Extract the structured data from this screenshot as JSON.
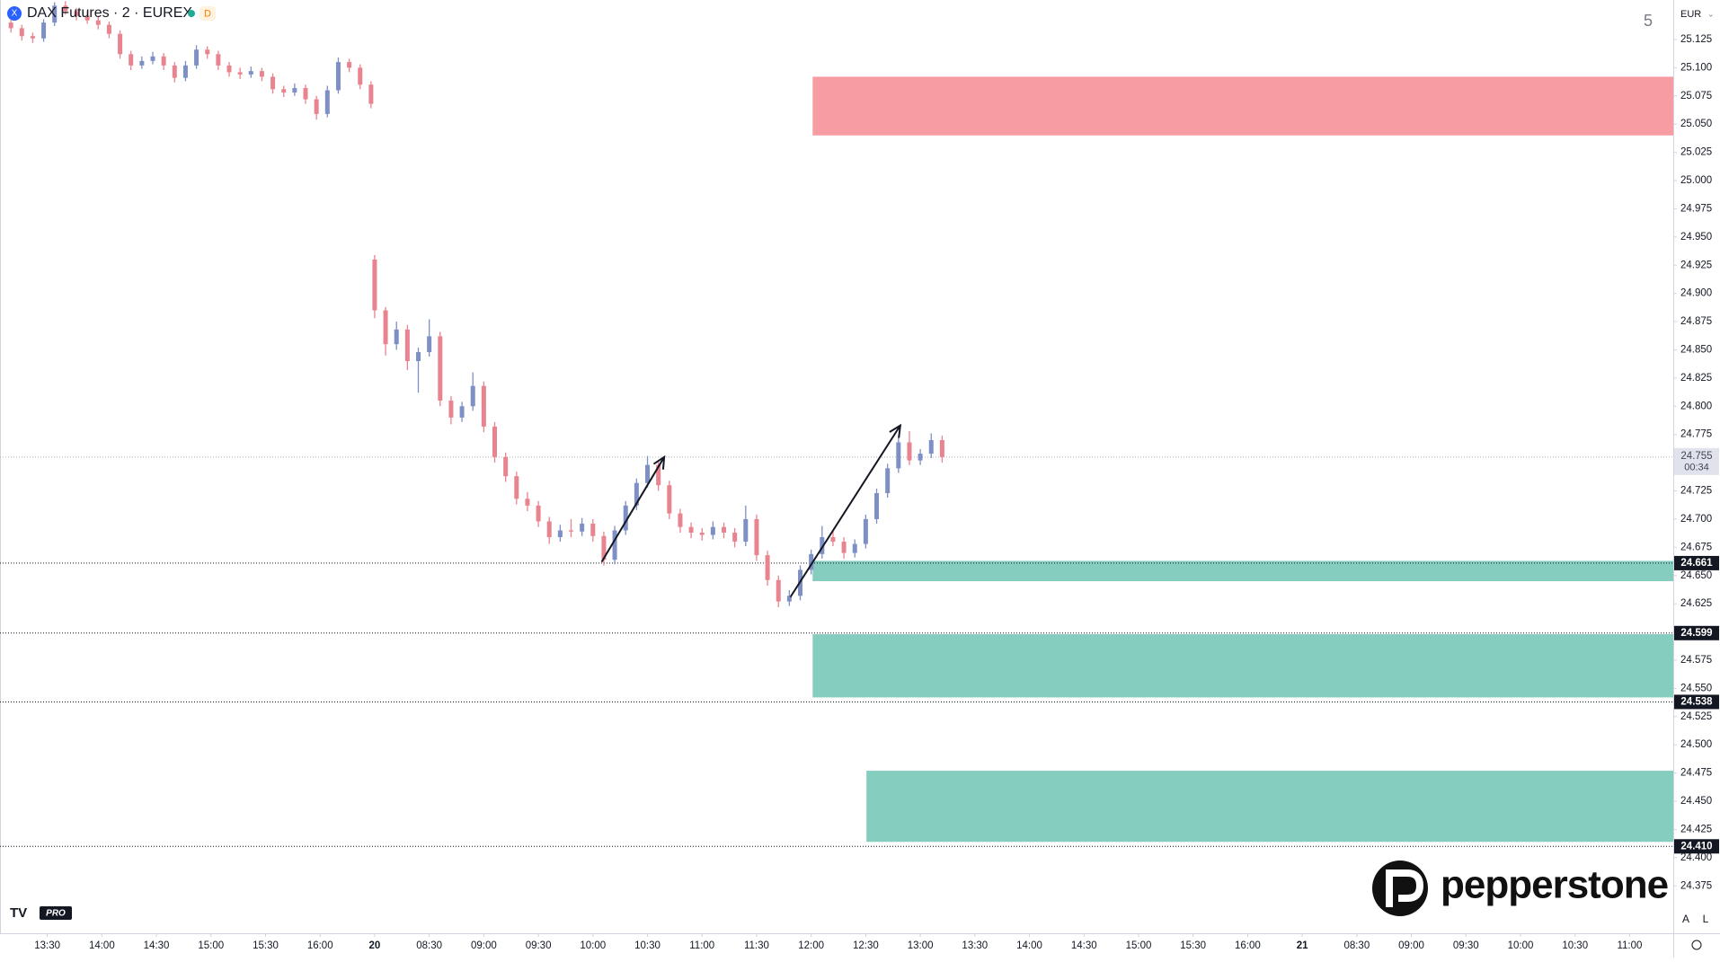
{
  "chart_data": {
    "type": "candlestick",
    "title": "DAX Futures · 2 · EUREX",
    "badge": "D",
    "corner_label": "5",
    "currency": "EUR",
    "axis_buttons": [
      "A",
      "L"
    ],
    "brand": "pepperstone",
    "tv_badge": "PRO",
    "up_color": "#7d8fc4",
    "down_color": "#e8848f",
    "xlim": [
      -13,
      447
    ],
    "ylim": [
      24333,
      25160
    ],
    "xticks": [
      {
        "value": 0,
        "label": "13:30"
      },
      {
        "value": 15,
        "label": "14:00"
      },
      {
        "value": 30,
        "label": "14:30"
      },
      {
        "value": 45,
        "label": "15:00"
      },
      {
        "value": 60,
        "label": "15:30"
      },
      {
        "value": 75,
        "label": "16:00"
      },
      {
        "value": 90,
        "label": "20"
      },
      {
        "value": 105,
        "label": "08:30"
      },
      {
        "value": 120,
        "label": "09:00"
      },
      {
        "value": 135,
        "label": "09:30"
      },
      {
        "value": 150,
        "label": "10:00"
      },
      {
        "value": 165,
        "label": "10:30"
      },
      {
        "value": 180,
        "label": "11:00"
      },
      {
        "value": 195,
        "label": "11:30"
      },
      {
        "value": 210,
        "label": "12:00"
      },
      {
        "value": 225,
        "label": "12:30"
      },
      {
        "value": 240,
        "label": "13:00"
      },
      {
        "value": 255,
        "label": "13:30"
      },
      {
        "value": 270,
        "label": "14:00"
      },
      {
        "value": 285,
        "label": "14:30"
      },
      {
        "value": 300,
        "label": "15:00"
      },
      {
        "value": 315,
        "label": "15:30"
      },
      {
        "value": 330,
        "label": "16:00"
      },
      {
        "value": 345,
        "label": "21"
      },
      {
        "value": 360,
        "label": "08:30"
      },
      {
        "value": 375,
        "label": "09:00"
      },
      {
        "value": 390,
        "label": "09:30"
      },
      {
        "value": 405,
        "label": "10:00"
      },
      {
        "value": 420,
        "label": "10:30"
      },
      {
        "value": 435,
        "label": "11:00"
      }
    ],
    "yticks": [
      {
        "value": 25125,
        "label": "25.125"
      },
      {
        "value": 25100,
        "label": "25.100"
      },
      {
        "value": 25075,
        "label": "25.075"
      },
      {
        "value": 25050,
        "label": "25.050"
      },
      {
        "value": 25025,
        "label": "25.025"
      },
      {
        "value": 25000,
        "label": "25.000"
      },
      {
        "value": 24975,
        "label": "24.975"
      },
      {
        "value": 24950,
        "label": "24.950"
      },
      {
        "value": 24925,
        "label": "24.925"
      },
      {
        "value": 24900,
        "label": "24.900"
      },
      {
        "value": 24875,
        "label": "24.875"
      },
      {
        "value": 24850,
        "label": "24.850"
      },
      {
        "value": 24825,
        "label": "24.825"
      },
      {
        "value": 24800,
        "label": "24.800"
      },
      {
        "value": 24775,
        "label": "24.775"
      },
      {
        "value": 24725,
        "label": "24.725"
      },
      {
        "value": 24700,
        "label": "24.700"
      },
      {
        "value": 24675,
        "label": "24.675"
      },
      {
        "value": 24650,
        "label": "24.650"
      },
      {
        "value": 24625,
        "label": "24.625"
      },
      {
        "value": 24575,
        "label": "24.575"
      },
      {
        "value": 24550,
        "label": "24.550"
      },
      {
        "value": 24525,
        "label": "24.525"
      },
      {
        "value": 24500,
        "label": "24.500"
      },
      {
        "value": 24475,
        "label": "24.475"
      },
      {
        "value": 24450,
        "label": "24.450"
      },
      {
        "value": 24425,
        "label": "24.425"
      },
      {
        "value": 24400,
        "label": "24.400"
      },
      {
        "value": 24375,
        "label": "24.375"
      }
    ],
    "candles": {
      "x": [
        -10,
        -7,
        -4,
        -1,
        2,
        5,
        8,
        11,
        14,
        17,
        20,
        23,
        26,
        29,
        32,
        35,
        38,
        41,
        44,
        47,
        50,
        53,
        56,
        59,
        62,
        65,
        68,
        71,
        74,
        77,
        80,
        83,
        86,
        89,
        90,
        93,
        96,
        99,
        102,
        105,
        108,
        111,
        114,
        117,
        120,
        123,
        126,
        129,
        132,
        135,
        138,
        141,
        144,
        147,
        150,
        153,
        156,
        159,
        162,
        165,
        168,
        171,
        174,
        177,
        180,
        183,
        186,
        189,
        192,
        195,
        198,
        201,
        204,
        207,
        210,
        213,
        216,
        219,
        222,
        225,
        228,
        231,
        234,
        237,
        240,
        243,
        246
      ],
      "ohlc": [
        [
          25140,
          25144,
          25131,
          25135
        ],
        [
          25135,
          25138,
          25124,
          25128
        ],
        [
          25128,
          25131,
          25122,
          25126
        ],
        [
          25126,
          25143,
          25123,
          25140
        ],
        [
          25140,
          25158,
          25137,
          25155
        ],
        [
          25155,
          25159,
          25147,
          25150
        ],
        [
          25150,
          25153,
          25142,
          25146
        ],
        [
          25146,
          25150,
          25139,
          25142
        ],
        [
          25142,
          25146,
          25134,
          25138
        ],
        [
          25138,
          25141,
          25126,
          25130
        ],
        [
          25130,
          25133,
          25108,
          25112
        ],
        [
          25112,
          25115,
          25098,
          25102
        ],
        [
          25102,
          25110,
          25099,
          25106
        ],
        [
          25106,
          25114,
          25103,
          25110
        ],
        [
          25110,
          25113,
          25098,
          25102
        ],
        [
          25102,
          25105,
          25087,
          25091
        ],
        [
          25091,
          25106,
          25088,
          25102
        ],
        [
          25102,
          25120,
          25099,
          25116
        ],
        [
          25116,
          25119,
          25108,
          25112
        ],
        [
          25112,
          25115,
          25098,
          25102
        ],
        [
          25102,
          25105,
          25092,
          25096
        ],
        [
          25096,
          25100,
          25090,
          25094
        ],
        [
          25094,
          25101,
          25091,
          25097
        ],
        [
          25097,
          25100,
          25088,
          25092
        ],
        [
          25092,
          25095,
          25077,
          25081
        ],
        [
          25081,
          25084,
          25074,
          25078
        ],
        [
          25078,
          25086,
          25075,
          25082
        ],
        [
          25082,
          25085,
          25068,
          25072
        ],
        [
          25072,
          25075,
          25054,
          25059
        ],
        [
          25059,
          25084,
          25056,
          25080
        ],
        [
          25080,
          25109,
          25077,
          25105
        ],
        [
          25105,
          25108,
          25096,
          25100
        ],
        [
          25100,
          25103,
          25081,
          25085
        ],
        [
          25085,
          25088,
          25064,
          25068
        ],
        [
          24930,
          24934,
          24878,
          24885
        ],
        [
          24885,
          24888,
          24845,
          24855
        ],
        [
          24855,
          24875,
          24850,
          24868
        ],
        [
          24868,
          24872,
          24832,
          24840
        ],
        [
          24840,
          24852,
          24812,
          24848
        ],
        [
          24848,
          24877,
          24844,
          24862
        ],
        [
          24862,
          24866,
          24800,
          24805
        ],
        [
          24805,
          24809,
          24784,
          24790
        ],
        [
          24790,
          24804,
          24786,
          24800
        ],
        [
          24800,
          24830,
          24796,
          24818
        ],
        [
          24818,
          24822,
          24777,
          24782
        ],
        [
          24782,
          24786,
          24750,
          24755
        ],
        [
          24755,
          24759,
          24733,
          24738
        ],
        [
          24738,
          24742,
          24713,
          24718
        ],
        [
          24718,
          24724,
          24707,
          24712
        ],
        [
          24712,
          24716,
          24693,
          24698
        ],
        [
          24698,
          24702,
          24678,
          24684
        ],
        [
          24684,
          24695,
          24680,
          24690
        ],
        [
          24690,
          24700,
          24684,
          24689
        ],
        [
          24689,
          24701,
          24685,
          24696
        ],
        [
          24696,
          24700,
          24680,
          24685
        ],
        [
          24685,
          24689,
          24659,
          24664
        ],
        [
          24664,
          24694,
          24660,
          24690
        ],
        [
          24690,
          24716,
          24686,
          24712
        ],
        [
          24712,
          24736,
          24708,
          24732
        ],
        [
          24732,
          24756,
          24728,
          24748
        ],
        [
          24748,
          24752,
          24725,
          24730
        ],
        [
          24730,
          24734,
          24700,
          24705
        ],
        [
          24705,
          24709,
          24688,
          24693
        ],
        [
          24693,
          24697,
          24683,
          24688
        ],
        [
          24688,
          24692,
          24681,
          24686
        ],
        [
          24686,
          24698,
          24682,
          24693
        ],
        [
          24693,
          24697,
          24683,
          24688
        ],
        [
          24688,
          24692,
          24675,
          24680
        ],
        [
          24680,
          24712,
          24676,
          24700
        ],
        [
          24700,
          24704,
          24663,
          24668
        ],
        [
          24668,
          24672,
          24641,
          24646
        ],
        [
          24646,
          24650,
          24622,
          24627
        ],
        [
          24627,
          24637,
          24623,
          24632
        ],
        [
          24632,
          24659,
          24628,
          24655
        ],
        [
          24655,
          24673,
          24651,
          24669
        ],
        [
          24669,
          24694,
          24665,
          24684
        ],
        [
          24684,
          24690,
          24676,
          24680
        ],
        [
          24680,
          24684,
          24665,
          24670
        ],
        [
          24670,
          24682,
          24666,
          24678
        ],
        [
          24678,
          24704,
          24674,
          24700
        ],
        [
          24700,
          24727,
          24696,
          24723
        ],
        [
          24723,
          24749,
          24719,
          24745
        ],
        [
          24745,
          24772,
          24741,
          24768
        ],
        [
          24768,
          24778,
          24748,
          24752
        ],
        [
          24752,
          24762,
          24748,
          24758
        ],
        [
          24758,
          24776,
          24754,
          24770
        ],
        [
          24770,
          24774,
          24750,
          24755
        ]
      ]
    },
    "zones": [
      {
        "top": 25092,
        "bottom": 25040,
        "start": 210.4,
        "color": "#f79ca3"
      },
      {
        "top": 24663,
        "bottom": 24645,
        "start": 210.4,
        "color": "#85cdbf"
      },
      {
        "top": 24598,
        "bottom": 24542,
        "start": 210.4,
        "color": "#85cdbf"
      },
      {
        "top": 24477,
        "bottom": 24414,
        "start": 225.2,
        "color": "#85cdbf"
      }
    ],
    "arrows": [
      {
        "x": [
          152.4,
          169.6
        ],
        "y": [
          24662,
          24755
        ]
      },
      {
        "x": [
          204.3,
          234.5
        ],
        "y": [
          24631,
          24783
        ]
      }
    ],
    "levels": [
      {
        "value": 24661,
        "label": "24.661"
      },
      {
        "value": 24599,
        "label": "24.599"
      },
      {
        "value": 24538,
        "label": "24.538"
      },
      {
        "value": 24410,
        "label": "24.410"
      }
    ],
    "last_price": {
      "value": 24755,
      "label": "24.755",
      "countdown": "00:34"
    }
  }
}
